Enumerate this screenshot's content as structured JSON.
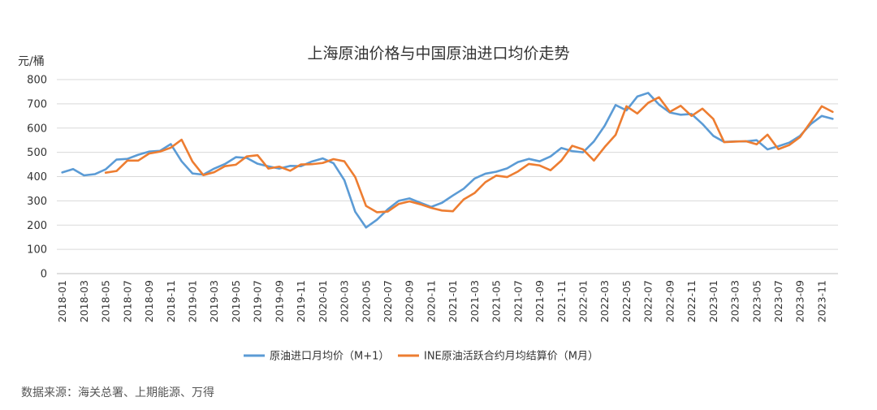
{
  "chart_data": {
    "type": "line",
    "title": "上海原油价格与中国原油进口均价走势",
    "ylabel": "元/桶",
    "ylim": [
      0,
      800
    ],
    "yticks": [
      "0",
      "100",
      "200",
      "300",
      "400",
      "500",
      "600",
      "700",
      "800"
    ],
    "x": [
      "2018-01",
      "2018-02",
      "2018-03",
      "2018-04",
      "2018-05",
      "2018-06",
      "2018-07",
      "2018-08",
      "2018-09",
      "2018-10",
      "2018-11",
      "2018-12",
      "2019-01",
      "2019-02",
      "2019-03",
      "2019-04",
      "2019-05",
      "2019-06",
      "2019-07",
      "2019-08",
      "2019-09",
      "2019-10",
      "2019-11",
      "2019-12",
      "2020-01",
      "2020-02",
      "2020-03",
      "2020-04",
      "2020-05",
      "2020-06",
      "2020-07",
      "2020-08",
      "2020-09",
      "2020-10",
      "2020-11",
      "2020-12",
      "2021-01",
      "2021-02",
      "2021-03",
      "2021-04",
      "2021-05",
      "2021-06",
      "2021-07",
      "2021-08",
      "2021-09",
      "2021-10",
      "2021-11",
      "2021-12",
      "2022-01",
      "2022-02",
      "2022-03",
      "2022-04",
      "2022-05",
      "2022-06",
      "2022-07",
      "2022-08",
      "2022-09",
      "2022-10",
      "2022-11",
      "2022-12",
      "2023-01",
      "2023-02",
      "2023-03",
      "2023-04",
      "2023-05",
      "2023-06",
      "2023-07",
      "2023-08",
      "2023-09",
      "2023-10",
      "2023-11",
      "2023-12"
    ],
    "xticks": [
      "2018-01",
      "2018-03",
      "2018-05",
      "2018-07",
      "2018-09",
      "2018-11",
      "2019-01",
      "2019-03",
      "2019-05",
      "2019-07",
      "2019-09",
      "2019-11",
      "2020-01",
      "2020-03",
      "2020-05",
      "2020-07",
      "2020-09",
      "2020-11",
      "2021-01",
      "2021-03",
      "2021-05",
      "2021-07",
      "2021-09",
      "2021-11",
      "2022-01",
      "2022-03",
      "2022-05",
      "2022-07",
      "2022-09",
      "2022-11",
      "2023-01",
      "2023-03",
      "2023-05",
      "2023-07",
      "2023-09",
      "2023-11"
    ],
    "series": [
      {
        "name": "原油进口月均价（M+1）",
        "color": "#5b9bd5",
        "values": [
          417,
          431,
          405,
          410,
          430,
          470,
          473,
          490,
          503,
          506,
          534,
          463,
          413,
          408,
          433,
          452,
          480,
          477,
          453,
          442,
          433,
          444,
          443,
          462,
          475,
          455,
          385,
          255,
          190,
          222,
          265,
          300,
          310,
          292,
          275,
          292,
          322,
          350,
          392,
          412,
          420,
          434,
          460,
          473,
          463,
          483,
          518,
          505,
          500,
          545,
          610,
          695,
          673,
          730,
          745,
          697,
          664,
          655,
          658,
          617,
          568,
          543,
          545,
          545,
          550,
          512,
          525,
          540,
          568,
          617,
          650,
          638
        ]
      },
      {
        "name": "INE原油活跃合约月均结算价（M月）",
        "color": "#ed7d31",
        "values": [
          null,
          null,
          null,
          null,
          416,
          423,
          466,
          466,
          495,
          503,
          519,
          552,
          462,
          406,
          418,
          443,
          449,
          483,
          488,
          433,
          441,
          424,
          450,
          451,
          456,
          472,
          463,
          398,
          279,
          253,
          256,
          287,
          298,
          286,
          271,
          260,
          257,
          306,
          332,
          377,
          404,
          398,
          421,
          452,
          446,
          426,
          466,
          527,
          512,
          466,
          522,
          572,
          690,
          660,
          704,
          727,
          667,
          692,
          650,
          680,
          638,
          542,
          544,
          546,
          533,
          573,
          513,
          530,
          563,
          626,
          690,
          667
        ]
      }
    ],
    "grid": true,
    "legend_position": "bottom"
  },
  "source_text": "数据来源：海关总署、上期能源、万得"
}
